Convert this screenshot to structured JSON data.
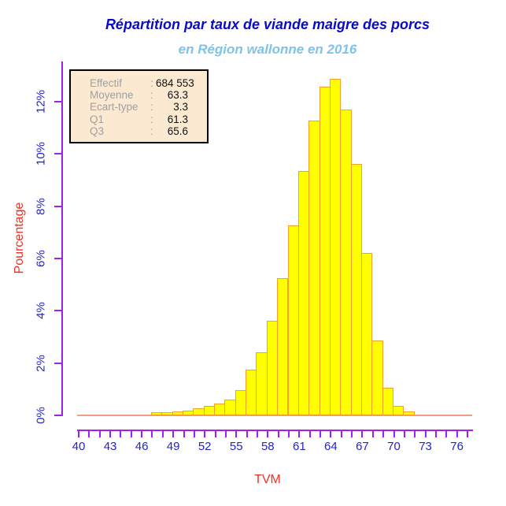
{
  "header": {
    "title": "Répartition par taux de viande maigre des porcs",
    "subtitle": "en Région wallonne en 2016"
  },
  "stats_box": {
    "rows": [
      {
        "label": "Effectif",
        "colon": ":",
        "value": "684 553"
      },
      {
        "label": "Moyenne",
        "colon": ":",
        "value": "63.3"
      },
      {
        "label": "Ecart-type",
        "colon": ":",
        "value": "3.3"
      },
      {
        "label": "Q1",
        "colon": ":",
        "value": "61.3"
      },
      {
        "label": "Q3",
        "colon": ":",
        "value": "65.6"
      }
    ]
  },
  "chart_data": {
    "type": "bar",
    "subtype": "histogram",
    "title": "Répartition par taux de viande maigre des porcs",
    "subtitle": "en Région wallonne en 2016",
    "xlabel": "TVM",
    "ylabel": "Pourcentage",
    "grid": false,
    "legend_position": "top-left",
    "xlim": [
      40,
      77
    ],
    "ylim": [
      0,
      13
    ],
    "bin_width": 1,
    "bin_edges": [
      47,
      48,
      49,
      50,
      51,
      52,
      53,
      54,
      55,
      56,
      57,
      58,
      59,
      60,
      61,
      62,
      63,
      64,
      65,
      66,
      67,
      68,
      69,
      70,
      71,
      72
    ],
    "values_pct": [
      0.05,
      0.05,
      0.08,
      0.12,
      0.22,
      0.3,
      0.4,
      0.55,
      0.9,
      1.7,
      2.35,
      3.55,
      5.2,
      7.2,
      9.3,
      11.2,
      12.5,
      12.8,
      11.65,
      9.55,
      6.15,
      2.8,
      0.98,
      0.3,
      0.09
    ],
    "x_ticks_minor_start": 40,
    "x_ticks_minor_end": 77,
    "x_tick_labels": [
      "40",
      "43",
      "46",
      "49",
      "52",
      "55",
      "58",
      "61",
      "64",
      "67",
      "70",
      "73",
      "76"
    ],
    "x_tick_label_values": [
      40,
      43,
      46,
      49,
      52,
      55,
      58,
      61,
      64,
      67,
      70,
      73,
      76
    ],
    "y_tick_values": [
      0,
      2,
      4,
      6,
      8,
      10,
      12
    ],
    "y_tick_labels": [
      "0%",
      "2%",
      "4%",
      "6%",
      "8%",
      "10%",
      "12%"
    ]
  },
  "colors": {
    "title": "#0A0AC8",
    "subtitle": "#7EC3E8",
    "axis_line": "#A020F0",
    "tick_label": "#2323CC",
    "axis_title": "#EE3124",
    "bar_fill": "#FFFF00",
    "bar_border": "#F5A028",
    "baseline": "#F0A080",
    "stats_bg": "#FBE9D2",
    "stats_border": "#000000",
    "stats_label": "#A0A0A0",
    "stats_value": "#111111"
  }
}
